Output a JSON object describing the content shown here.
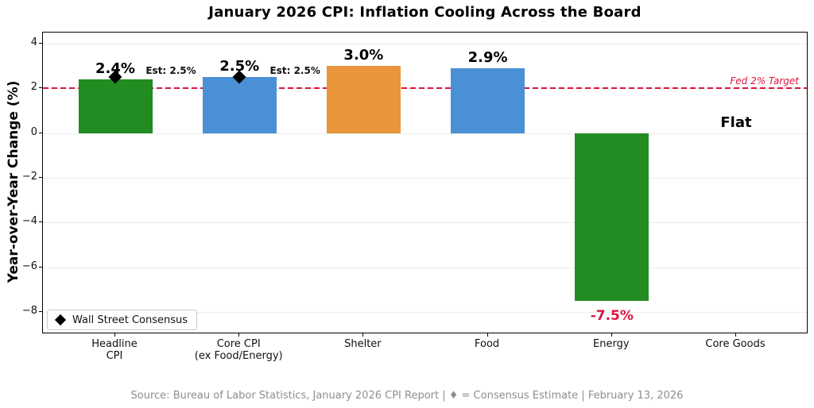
{
  "title": "January 2026 CPI: Inflation Cooling Across the Board",
  "footer": "Source: Bureau of Labor Statistics, January 2026 CPI Report | ♦ = Consensus Estimate | February 13, 2026",
  "colors": {
    "green": "#228B22",
    "blue": "#4A90D5",
    "orange": "#E8953C",
    "crimson": "#DC143C",
    "grid": "#EBEBEB",
    "footer_gray": "#8E8E8E"
  },
  "chart_data": {
    "type": "bar",
    "title": "January 2026 CPI: Inflation Cooling Across the Board",
    "ylabel": "Year-over-Year Change (%)",
    "xlabel": "",
    "ylim": [
      -9,
      4.5
    ],
    "yticks": [
      4,
      2,
      0,
      -2,
      -4,
      -6,
      -8
    ],
    "grid": "horizontal-light",
    "categories": [
      "Headline\nCPI",
      "Core CPI\n(ex Food/Energy)",
      "Shelter",
      "Food",
      "Energy",
      "Core Goods"
    ],
    "values": [
      2.4,
      2.5,
      3.0,
      2.9,
      -7.5,
      0.0
    ],
    "value_labels": [
      "2.4%",
      "2.5%",
      "3.0%",
      "2.9%",
      "-7.5%",
      "Flat"
    ],
    "bar_colors": [
      "#228B22",
      "#4A90D5",
      "#E8953C",
      "#4A90D5",
      "#228B22",
      null
    ],
    "value_label_colors": [
      "#000000",
      "#000000",
      "#000000",
      "#000000",
      "#DC143C",
      "#000000"
    ],
    "consensus": {
      "marker": "diamond",
      "color": "#000000",
      "values": [
        2.5,
        2.5,
        null,
        null,
        null,
        null
      ],
      "labels": [
        "Est: 2.5%",
        "Est: 2.5%",
        null,
        null,
        null,
        null
      ]
    },
    "reference_line": {
      "value": 2,
      "label": "Fed 2% Target",
      "color": "#DC143C",
      "style": "dashed"
    },
    "legend": {
      "position": "lower left",
      "entries": [
        {
          "marker": "diamond",
          "label": "Wall Street Consensus"
        }
      ]
    }
  }
}
